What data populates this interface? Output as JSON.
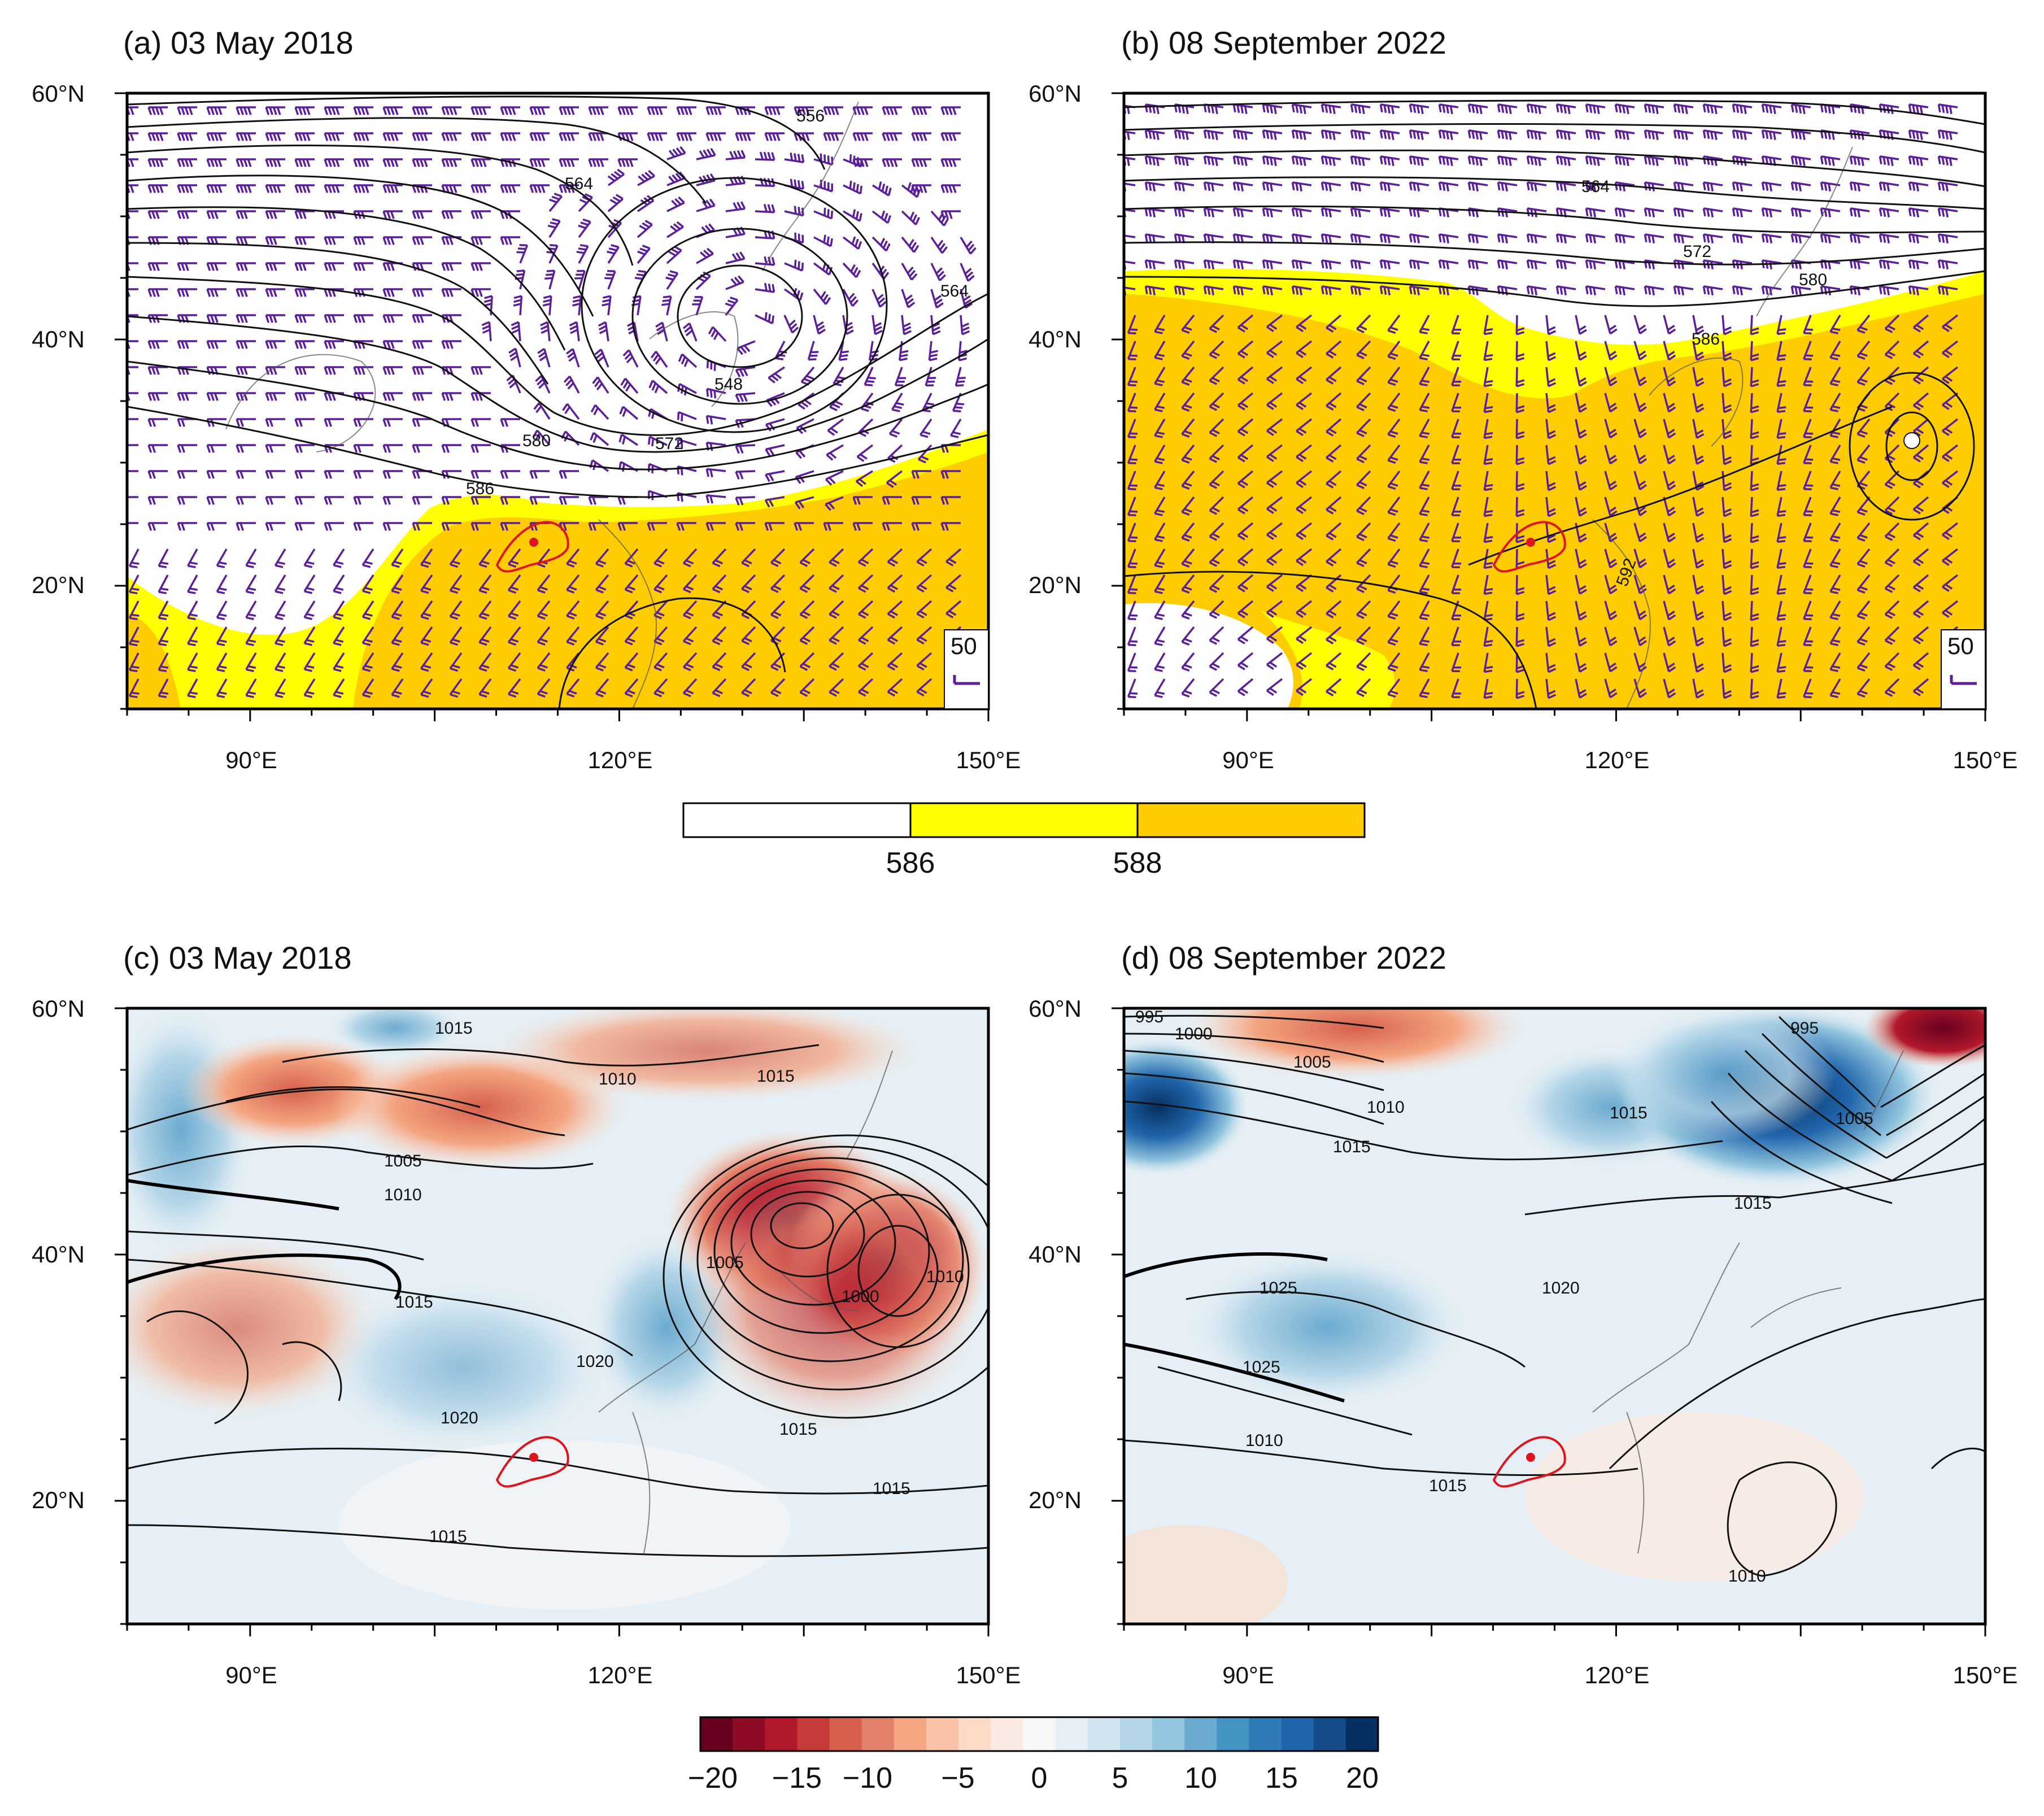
{
  "panels": [
    {
      "id": "a",
      "title": "(a) 03 May 2018",
      "contour_labels": [
        "556",
        "564",
        "548",
        "572",
        "580",
        "586",
        "564"
      ],
      "vector_ref": "50"
    },
    {
      "id": "b",
      "title": "(b) 08 September 2022",
      "contour_labels": [
        "564",
        "572",
        "580",
        "586",
        "592"
      ],
      "vector_ref": "50"
    },
    {
      "id": "c",
      "title": "(c) 03 May 2018",
      "contour_labels": [
        "1015",
        "1010",
        "1005",
        "1010",
        "1015",
        "1020",
        "1015",
        "1000",
        "1005",
        "1010",
        "1015",
        "1015",
        "1020",
        "1015"
      ]
    },
    {
      "id": "d",
      "title": "(d) 08 September 2022",
      "contour_labels": [
        "995",
        "1000",
        "1005",
        "1010",
        "1015",
        "1015",
        "1020",
        "1025",
        "1025",
        "1015",
        "1015",
        "1010",
        "1005",
        "995",
        "1010"
      ]
    }
  ],
  "axes": {
    "lat_labels": [
      "60°N",
      "40°N",
      "20°N"
    ],
    "lon_labels": [
      "90°E",
      "120°E",
      "150°E"
    ]
  },
  "colorbar_top": {
    "ticks": [
      "586",
      "588"
    ],
    "colors": [
      "#ffffff",
      "#ffff00",
      "#ffcc00"
    ]
  },
  "colorbar_bottom": {
    "ticks": [
      "−20",
      "−15",
      "−10",
      "−5",
      "0",
      "5",
      "10",
      "15",
      "20"
    ],
    "colors": [
      "#67001f",
      "#8e0b25",
      "#b2182b",
      "#c63a3a",
      "#d6604d",
      "#e4816a",
      "#f4a582",
      "#f8c3a6",
      "#fddbc7",
      "#fbeae2",
      "#f7f7f7",
      "#e5eff5",
      "#d1e5f0",
      "#b5d6e8",
      "#92c5de",
      "#6cabd0",
      "#4393c3",
      "#2f7bb6",
      "#2166ac",
      "#164b8a",
      "#053061"
    ]
  },
  "colors": {
    "vector": "#5b1f9a",
    "region_outline": "#e0141e",
    "level586": "#ffff00",
    "level588": "#ffcc00"
  }
}
